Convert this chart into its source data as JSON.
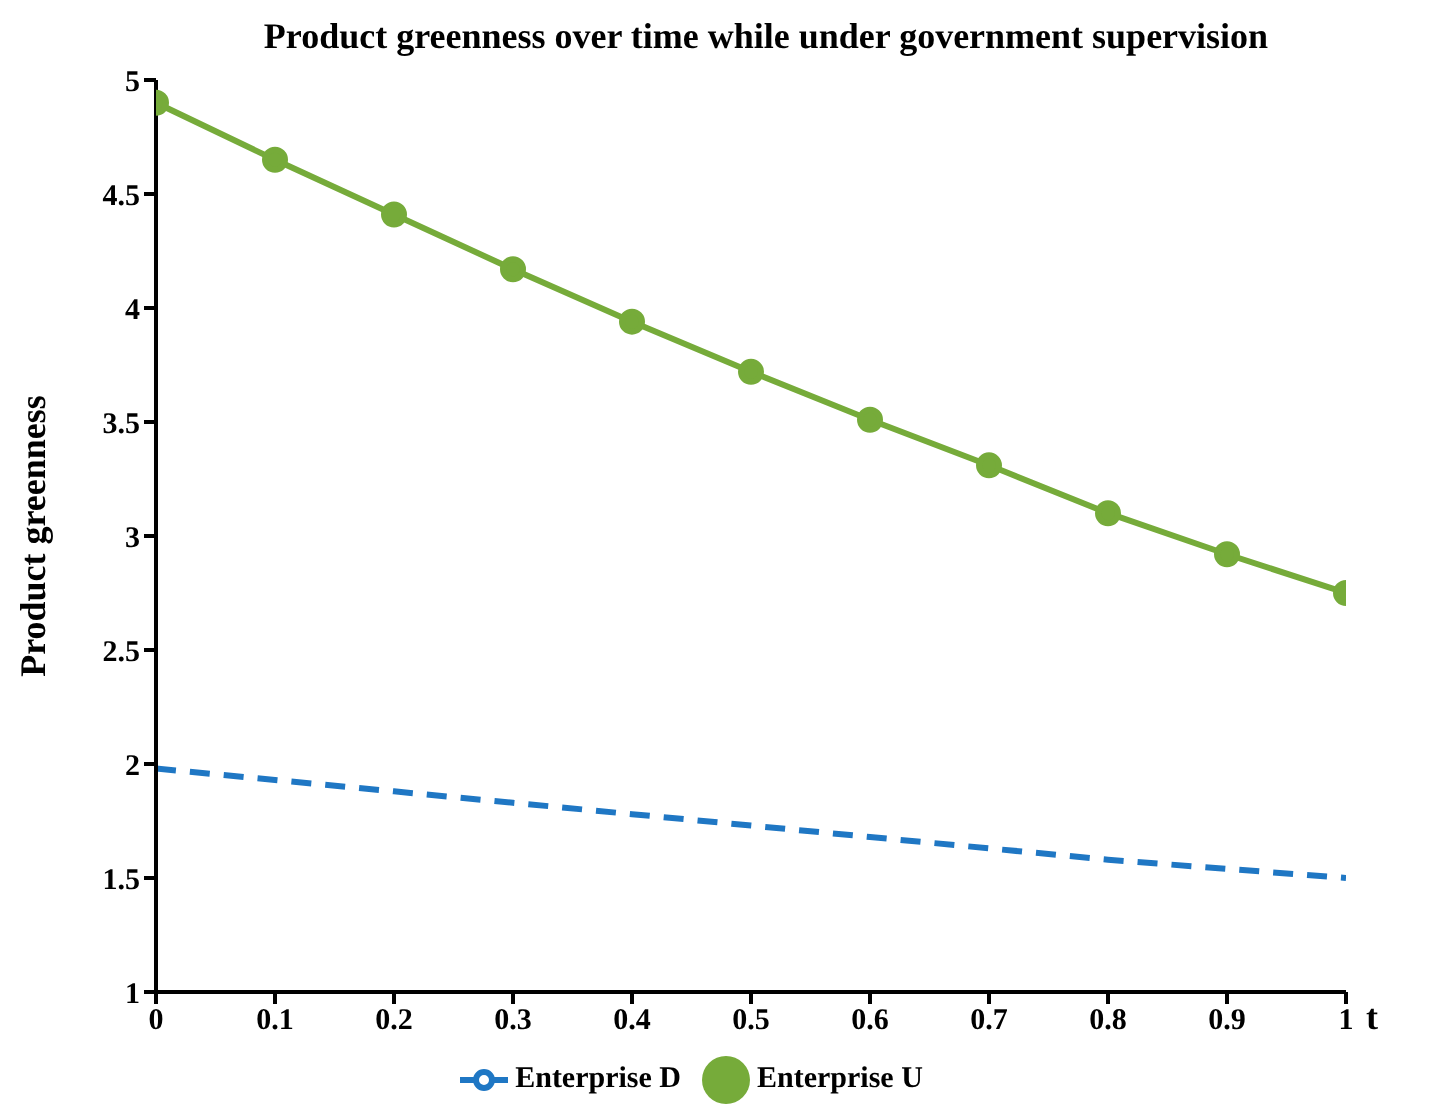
{
  "chart_data": {
    "type": "line",
    "title": "Product greenness over time while under government supervision",
    "xlabel": "t",
    "ylabel": "Product greenness",
    "x": [
      0,
      0.1,
      0.2,
      0.3,
      0.4,
      0.5,
      0.6,
      0.7,
      0.8,
      0.9,
      1
    ],
    "series": [
      {
        "name": "Enterprise U",
        "color": "#76ab3a",
        "marker": "circle",
        "line_style": "solid",
        "values": [
          4.9,
          4.65,
          4.41,
          4.17,
          3.94,
          3.72,
          3.51,
          3.31,
          3.1,
          2.92,
          2.75
        ]
      },
      {
        "name": "Enterprise D",
        "color": "#1f77c4",
        "marker": "none",
        "line_style": "dashed",
        "values": [
          1.98,
          1.93,
          1.88,
          1.83,
          1.78,
          1.73,
          1.68,
          1.63,
          1.58,
          1.54,
          1.5
        ]
      }
    ],
    "xlim": [
      0,
      1
    ],
    "xticks": [
      0,
      0.1,
      0.2,
      0.3,
      0.4,
      0.5,
      0.6,
      0.7,
      0.8,
      0.9,
      1
    ],
    "ylim": [
      1,
      5
    ],
    "yticks": [
      1,
      1.5,
      2,
      2.5,
      3,
      3.5,
      4,
      4.5,
      5
    ],
    "grid": false,
    "legend": "bottom"
  }
}
